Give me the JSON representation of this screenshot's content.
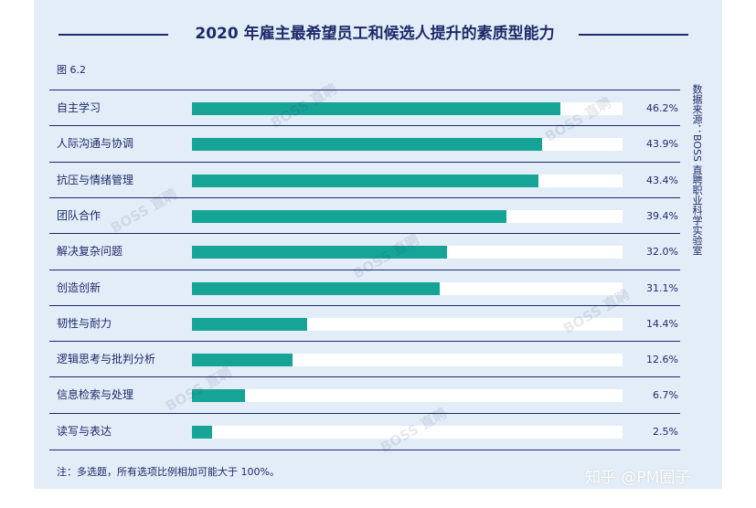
{
  "header": {
    "title": "2020 年雇主最希望员工和候选人提升的素质型能力",
    "figure_label": "图 6.2"
  },
  "source_text": "数据来源：BOSS 直聘职业科学实验室",
  "note_text": "注：多选题，所有选项比例相加可能大于 100%。",
  "watermark_text": "BOSS 直聘",
  "site_watermark": "知乎 @PM圈子",
  "colors": {
    "panel_bg": "#e3edf7",
    "bar": "#16a497",
    "track": "#ffffff",
    "text": "#1d2b6b"
  },
  "chart_data": {
    "type": "bar",
    "orientation": "horizontal",
    "title": "2020 年雇主最希望员工和候选人提升的素质型能力",
    "categories": [
      "自主学习",
      "人际沟通与协调",
      "抗压与情绪管理",
      "团队合作",
      "解决复杂问题",
      "创造创新",
      "韧性与耐力",
      "逻辑思考与批判分析",
      "信息检索与处理",
      "读写与表达"
    ],
    "values": [
      46.2,
      43.9,
      43.4,
      39.4,
      32.0,
      31.1,
      14.4,
      12.6,
      6.7,
      2.5
    ],
    "value_labels": [
      "46.2%",
      "43.9%",
      "43.4%",
      "39.4%",
      "32.0%",
      "31.1%",
      "14.4%",
      "12.6%",
      "6.7%",
      "2.5%"
    ],
    "xlim": [
      0,
      54
    ],
    "grid": false,
    "legend": "none"
  }
}
